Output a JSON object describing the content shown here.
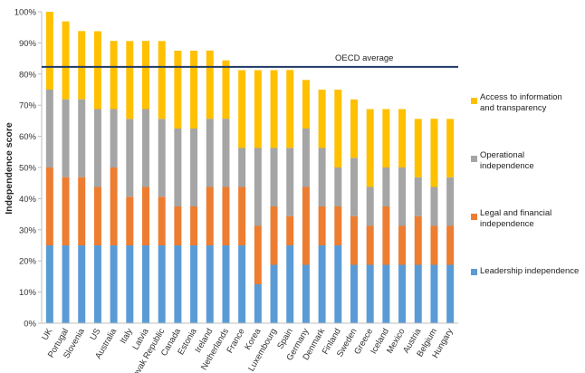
{
  "chart_data": {
    "type": "bar",
    "stacked": true,
    "xlabel": "",
    "ylabel": "Independence score",
    "ylim": [
      0,
      100
    ],
    "yticks": [
      "0%",
      "10%",
      "20%",
      "30%",
      "40%",
      "50%",
      "60%",
      "70%",
      "80%",
      "90%",
      "100%"
    ],
    "categories": [
      "UK",
      "Portugal",
      "Slovenia",
      "US",
      "Australia",
      "Italy",
      "Latvia",
      "Slovak Republic",
      "Canada",
      "Estonia",
      "Ireland",
      "Netherlands",
      "France",
      "Korea",
      "Luxembourg",
      "Spain",
      "Germany",
      "Denmark",
      "Finland",
      "Sweden",
      "Greece",
      "Iceland",
      "Mexico",
      "Austria",
      "Belgium",
      "Hungary"
    ],
    "series": [
      {
        "name": "Leadership independence",
        "color": "#5b9bd5",
        "values": [
          25,
          25,
          25,
          25,
          25,
          25,
          25,
          25,
          25,
          25,
          25,
          25,
          25,
          12.5,
          18.75,
          25,
          18.75,
          25,
          25,
          18.75,
          18.75,
          18.75,
          18.75,
          18.75,
          18.75,
          18.75
        ]
      },
      {
        "name": "Legal and financial independence",
        "color": "#ed7d31",
        "values": [
          25,
          21.9,
          21.9,
          18.75,
          25,
          15.6,
          18.75,
          15.6,
          12.5,
          12.5,
          18.75,
          18.75,
          18.75,
          18.75,
          18.75,
          9.4,
          25,
          12.5,
          12.5,
          15.6,
          12.5,
          18.75,
          12.5,
          15.6,
          12.5,
          12.5
        ]
      },
      {
        "name": "Operational independence",
        "color": "#a5a5a5",
        "values": [
          25,
          25,
          25,
          25,
          18.75,
          25,
          25,
          25,
          25,
          25,
          21.9,
          21.9,
          12.5,
          25,
          18.75,
          21.9,
          18.75,
          18.75,
          12.5,
          18.75,
          12.5,
          12.5,
          18.75,
          12.5,
          12.5,
          15.6
        ]
      },
      {
        "name": "Access to information and transparency",
        "color": "#ffc000",
        "values": [
          25,
          25,
          21.9,
          25,
          21.9,
          25,
          21.9,
          25,
          25,
          25,
          21.9,
          18.75,
          25,
          25,
          25,
          25,
          15.6,
          18.75,
          25,
          18.75,
          25,
          18.75,
          18.75,
          18.75,
          21.9,
          18.75
        ]
      }
    ],
    "reference_line": {
      "label": "OECD average",
      "value": 82.3,
      "color": "#1f3864"
    },
    "grid": false,
    "legend_position": "right"
  },
  "legend": [
    {
      "label_lines": [
        "Access to information",
        "and transparency"
      ],
      "color": "#ffc000"
    },
    {
      "label_lines": [
        "Operational",
        "independence"
      ],
      "color": "#a5a5a5"
    },
    {
      "label_lines": [
        "Legal and financial",
        "independence"
      ],
      "color": "#ed7d31"
    },
    {
      "label_lines": [
        "Leadership independence"
      ],
      "color": "#5b9bd5"
    }
  ]
}
